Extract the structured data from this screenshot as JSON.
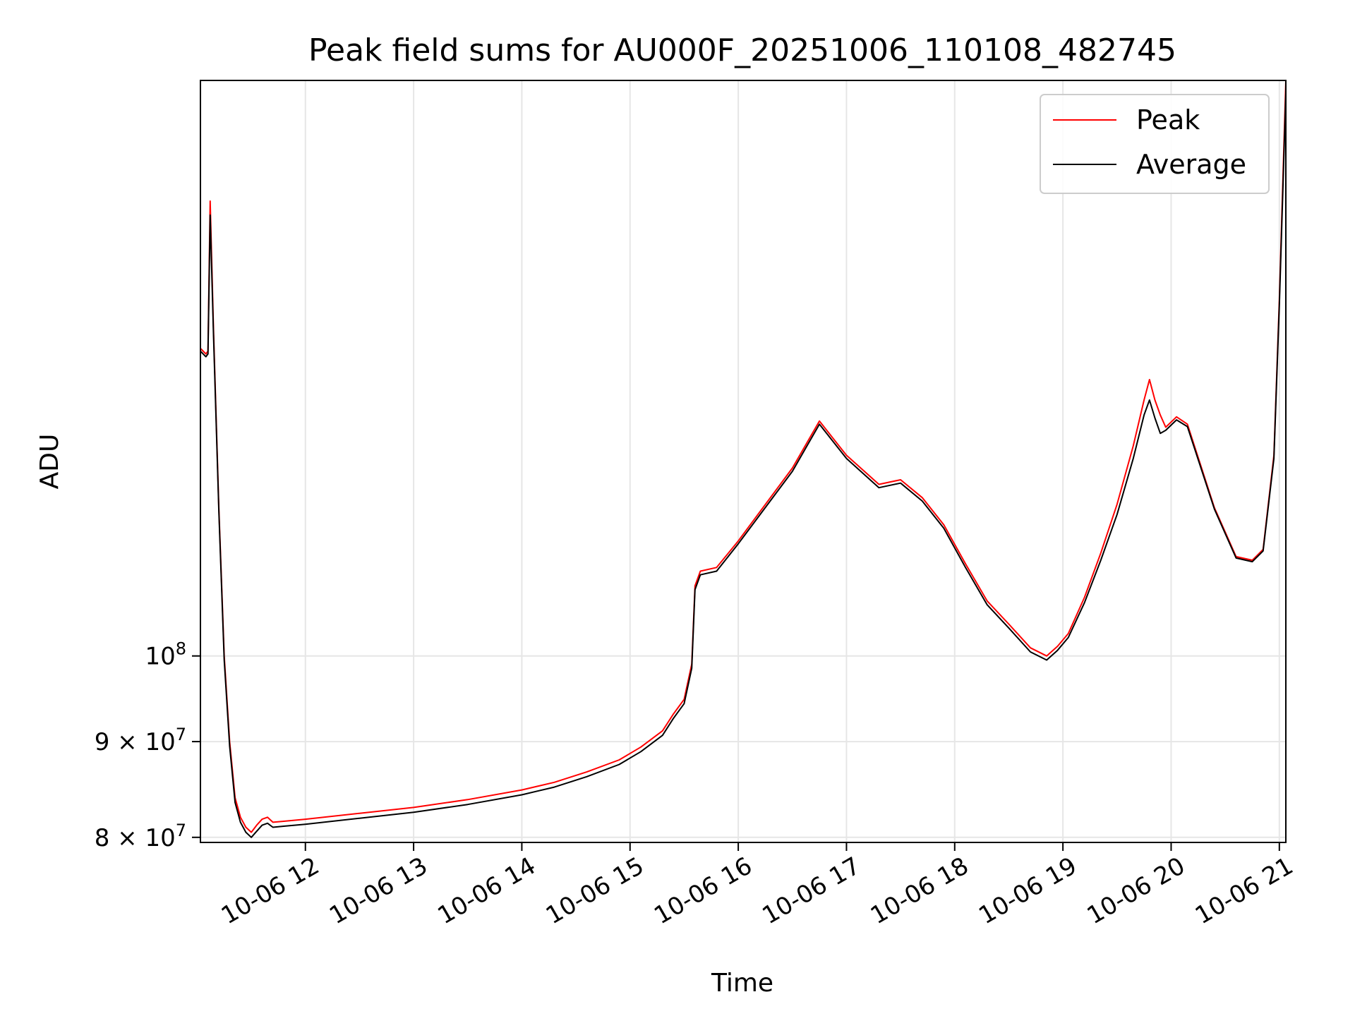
{
  "chart_data": {
    "type": "line",
    "title": "Peak field sums for AU000F_20251006_110108_482745",
    "xlabel": "Time",
    "ylabel": "ADU",
    "x_unit": "hours since 2025-10-06 00:00",
    "xlim": [
      11.03,
      21.06
    ],
    "ylim": [
      79500000,
      203000000
    ],
    "yscale": "log",
    "grid": true,
    "legend_position": "top-right",
    "x_ticks": [
      {
        "value": 12,
        "label": "10-06 12"
      },
      {
        "value": 13,
        "label": "10-06 13"
      },
      {
        "value": 14,
        "label": "10-06 14"
      },
      {
        "value": 15,
        "label": "10-06 15"
      },
      {
        "value": 16,
        "label": "10-06 16"
      },
      {
        "value": 17,
        "label": "10-06 17"
      },
      {
        "value": 18,
        "label": "10-06 18"
      },
      {
        "value": 19,
        "label": "10-06 19"
      },
      {
        "value": 20,
        "label": "10-06 20"
      },
      {
        "value": 21,
        "label": "10-06 21"
      }
    ],
    "y_ticks": [
      {
        "value": 80000000,
        "base": "8 × 10",
        "exp": "7"
      },
      {
        "value": 90000000,
        "base": "9 × 10",
        "exp": "7"
      },
      {
        "value": 100000000,
        "base": "10",
        "exp": "8"
      }
    ],
    "series": [
      {
        "name": "Peak",
        "color": "#ff0000",
        "x": [
          11.03,
          11.08,
          11.1,
          11.12,
          11.15,
          11.2,
          11.25,
          11.3,
          11.35,
          11.4,
          11.45,
          11.5,
          11.55,
          11.6,
          11.65,
          11.7,
          11.8,
          12.0,
          12.5,
          13.0,
          13.5,
          14.0,
          14.3,
          14.6,
          14.9,
          15.1,
          15.3,
          15.4,
          15.5,
          15.57,
          15.6,
          15.65,
          15.8,
          16.0,
          16.5,
          16.75,
          17.0,
          17.3,
          17.5,
          17.7,
          17.9,
          18.1,
          18.3,
          18.5,
          18.7,
          18.85,
          18.95,
          19.05,
          19.2,
          19.35,
          19.5,
          19.65,
          19.75,
          19.8,
          19.85,
          19.9,
          19.95,
          20.05,
          20.15,
          20.4,
          20.6,
          20.75,
          20.85,
          20.95,
          21.0,
          21.06
        ],
        "y": [
          146000000,
          145000000,
          145500000,
          175000000,
          150000000,
          120000000,
          100000000,
          90000000,
          84000000,
          82000000,
          81000000,
          80500000,
          81200000,
          81800000,
          82000000,
          81500000,
          81600000,
          81800000,
          82400000,
          83000000,
          83800000,
          84800000,
          85600000,
          86700000,
          88000000,
          89400000,
          91200000,
          93100000,
          94800000,
          99000000,
          109000000,
          111000000,
          111500000,
          115200000,
          126000000,
          133500000,
          128000000,
          123500000,
          124200000,
          121500000,
          117500000,
          112000000,
          107000000,
          104000000,
          101000000,
          100000000,
          101200000,
          102800000,
          107500000,
          113500000,
          120500000,
          129500000,
          137000000,
          140500000,
          137000000,
          134500000,
          132500000,
          134200000,
          133000000,
          120000000,
          113000000,
          112500000,
          114000000,
          128000000,
          155000000,
          203000000
        ]
      },
      {
        "name": "Average",
        "color": "#000000",
        "x": [
          11.03,
          11.08,
          11.1,
          11.12,
          11.15,
          11.2,
          11.25,
          11.3,
          11.35,
          11.4,
          11.45,
          11.5,
          11.55,
          11.6,
          11.65,
          11.7,
          11.8,
          12.0,
          12.5,
          13.0,
          13.5,
          14.0,
          14.3,
          14.6,
          14.9,
          15.1,
          15.3,
          15.4,
          15.5,
          15.57,
          15.6,
          15.65,
          15.8,
          16.0,
          16.5,
          16.75,
          17.0,
          17.3,
          17.5,
          17.7,
          17.9,
          18.1,
          18.3,
          18.5,
          18.7,
          18.85,
          18.95,
          19.05,
          19.2,
          19.35,
          19.5,
          19.65,
          19.75,
          19.8,
          19.85,
          19.9,
          19.95,
          20.05,
          20.15,
          20.4,
          20.6,
          20.75,
          20.85,
          20.95,
          21.0,
          21.06
        ],
        "y": [
          145500000,
          144500000,
          145000000,
          172000000,
          149000000,
          119500000,
          99500000,
          89500000,
          83500000,
          81500000,
          80500000,
          80000000,
          80600000,
          81200000,
          81400000,
          81000000,
          81100000,
          81300000,
          81900000,
          82500000,
          83300000,
          84300000,
          85100000,
          86200000,
          87500000,
          88900000,
          90700000,
          92600000,
          94300000,
          98500000,
          108500000,
          110500000,
          111000000,
          114800000,
          125500000,
          133000000,
          127500000,
          123000000,
          123700000,
          121000000,
          117000000,
          111500000,
          106500000,
          103500000,
          100500000,
          99500000,
          100700000,
          102300000,
          106800000,
          112500000,
          119000000,
          127500000,
          134500000,
          137000000,
          134000000,
          131500000,
          132000000,
          133700000,
          132600000,
          119800000,
          112800000,
          112300000,
          113800000,
          127500000,
          154000000,
          200000000
        ]
      }
    ]
  }
}
